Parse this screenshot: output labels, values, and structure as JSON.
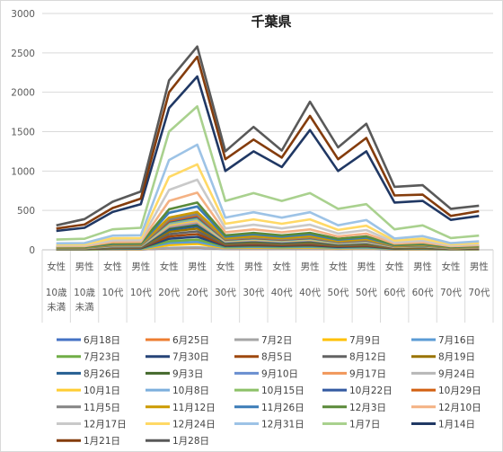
{
  "chart_data": {
    "type": "line",
    "title": "千葉県",
    "ylim": [
      0,
      3000
    ],
    "yticks": [
      0,
      500,
      1000,
      1500,
      2000,
      2500,
      3000
    ],
    "grid": true,
    "legend_position": "bottom",
    "categories": [
      {
        "top": "女性",
        "bottom": [
          "10歳",
          "未満"
        ]
      },
      {
        "top": "男性",
        "bottom": [
          "10歳",
          "未満"
        ]
      },
      {
        "top": "女性",
        "bottom": [
          "10代"
        ]
      },
      {
        "top": "男性",
        "bottom": [
          "10代"
        ]
      },
      {
        "top": "女性",
        "bottom": [
          "20代"
        ]
      },
      {
        "top": "男性",
        "bottom": [
          "20代"
        ]
      },
      {
        "top": "女性",
        "bottom": [
          "30代"
        ]
      },
      {
        "top": "男性",
        "bottom": [
          "30代"
        ]
      },
      {
        "top": "女性",
        "bottom": [
          "40代"
        ]
      },
      {
        "top": "男性",
        "bottom": [
          "40代"
        ]
      },
      {
        "top": "女性",
        "bottom": [
          "50代"
        ]
      },
      {
        "top": "男性",
        "bottom": [
          "50代"
        ]
      },
      {
        "top": "女性",
        "bottom": [
          "60代"
        ]
      },
      {
        "top": "男性",
        "bottom": [
          "60代"
        ]
      },
      {
        "top": "女性",
        "bottom": [
          "70代"
        ]
      },
      {
        "top": "男性",
        "bottom": [
          "70代"
        ]
      }
    ],
    "series": [
      {
        "name": "6月18日",
        "color": "#4472c4",
        "values": [
          3,
          3,
          5,
          5,
          20,
          25,
          10,
          12,
          10,
          12,
          8,
          10,
          5,
          6,
          3,
          5
        ]
      },
      {
        "name": "6月25日",
        "color": "#ed7d31",
        "values": [
          3,
          3,
          5,
          5,
          22,
          28,
          11,
          13,
          11,
          13,
          9,
          11,
          5,
          7,
          3,
          5
        ]
      },
      {
        "name": "7月2日",
        "color": "#a5a5a5",
        "values": [
          4,
          4,
          6,
          6,
          25,
          32,
          12,
          15,
          12,
          15,
          10,
          12,
          6,
          7,
          4,
          6
        ]
      },
      {
        "name": "7月9日",
        "color": "#ffc000",
        "values": [
          5,
          5,
          10,
          10,
          60,
          75,
          25,
          30,
          25,
          30,
          20,
          25,
          10,
          12,
          6,
          8
        ]
      },
      {
        "name": "7月16日",
        "color": "#5b9bd5",
        "values": [
          6,
          6,
          13,
          14,
          85,
          100,
          32,
          38,
          32,
          38,
          25,
          30,
          12,
          15,
          7,
          10
        ]
      },
      {
        "name": "7月23日",
        "color": "#70ad47",
        "values": [
          8,
          8,
          16,
          17,
          110,
          130,
          40,
          48,
          40,
          48,
          32,
          38,
          15,
          18,
          9,
          12
        ]
      },
      {
        "name": "7月30日",
        "color": "#264478",
        "values": [
          10,
          10,
          20,
          21,
          140,
          165,
          50,
          58,
          50,
          58,
          38,
          46,
          18,
          22,
          11,
          14
        ]
      },
      {
        "name": "8月5日",
        "color": "#9e480e",
        "values": [
          12,
          12,
          25,
          26,
          170,
          200,
          60,
          70,
          60,
          70,
          46,
          55,
          22,
          26,
          13,
          17
        ]
      },
      {
        "name": "8月12日",
        "color": "#636363",
        "values": [
          14,
          14,
          30,
          31,
          200,
          235,
          72,
          84,
          72,
          84,
          55,
          66,
          26,
          31,
          15,
          20
        ]
      },
      {
        "name": "8月19日",
        "color": "#997300",
        "values": [
          16,
          16,
          35,
          36,
          230,
          270,
          83,
          97,
          83,
          97,
          64,
          76,
          30,
          35,
          17,
          23
        ]
      },
      {
        "name": "8月26日",
        "color": "#255e91",
        "values": [
          18,
          18,
          40,
          41,
          255,
          300,
          92,
          108,
          92,
          108,
          71,
          85,
          33,
          39,
          19,
          25
        ]
      },
      {
        "name": "9月3日",
        "color": "#43682b",
        "values": [
          19,
          20,
          43,
          44,
          275,
          322,
          99,
          116,
          99,
          116,
          76,
          91,
          35,
          42,
          20,
          27
        ]
      },
      {
        "name": "9月10日",
        "color": "#698ed0",
        "values": [
          20,
          21,
          45,
          46,
          290,
          340,
          104,
          122,
          104,
          122,
          80,
          96,
          37,
          44,
          21,
          28
        ]
      },
      {
        "name": "9月17日",
        "color": "#f1975a",
        "values": [
          21,
          22,
          47,
          48,
          300,
          352,
          108,
          126,
          108,
          126,
          83,
          99,
          38,
          46,
          22,
          29
        ]
      },
      {
        "name": "9月24日",
        "color": "#b7b7b7",
        "values": [
          22,
          23,
          49,
          50,
          310,
          364,
          112,
          130,
          112,
          130,
          86,
          103,
          40,
          47,
          23,
          30
        ]
      },
      {
        "name": "10月1日",
        "color": "#ffcd33",
        "values": [
          23,
          24,
          51,
          52,
          322,
          378,
          116,
          135,
          116,
          135,
          89,
          107,
          41,
          49,
          24,
          31
        ]
      },
      {
        "name": "10月8日",
        "color": "#7cafdd",
        "values": [
          24,
          25,
          53,
          54,
          334,
          392,
          120,
          140,
          120,
          140,
          92,
          111,
          43,
          51,
          25,
          32
        ]
      },
      {
        "name": "10月15日",
        "color": "#8cc168",
        "values": [
          25,
          26,
          55,
          56,
          346,
          406,
          124,
          145,
          124,
          145,
          95,
          115,
          44,
          53,
          26,
          33
        ]
      },
      {
        "name": "10月22日",
        "color": "#335aa1",
        "values": [
          26,
          27,
          57,
          58,
          358,
          420,
          128,
          150,
          128,
          150,
          98,
          119,
          46,
          55,
          27,
          34
        ]
      },
      {
        "name": "10月29日",
        "color": "#d26012",
        "values": [
          27,
          28,
          59,
          60,
          370,
          434,
          132,
          155,
          132,
          155,
          101,
          123,
          47,
          57,
          28,
          35
        ]
      },
      {
        "name": "11月5日",
        "color": "#848484",
        "values": [
          28,
          29,
          62,
          63,
          385,
          452,
          138,
          161,
          138,
          161,
          105,
          128,
          49,
          59,
          29,
          37
        ]
      },
      {
        "name": "11月12日",
        "color": "#cc9a00",
        "values": [
          30,
          31,
          66,
          67,
          410,
          480,
          147,
          172,
          147,
          172,
          112,
          136,
          52,
          63,
          31,
          39
        ]
      },
      {
        "name": "11月26日",
        "color": "#3b7cb7",
        "values": [
          34,
          35,
          75,
          77,
          470,
          550,
          168,
          197,
          168,
          197,
          128,
          155,
          60,
          72,
          35,
          45
        ]
      },
      {
        "name": "12月3日",
        "color": "#5a8a39",
        "values": [
          37,
          38,
          82,
          84,
          515,
          600,
          184,
          215,
          184,
          215,
          140,
          170,
          65,
          78,
          38,
          49
        ]
      },
      {
        "name": "12月10日",
        "color": "#f4b183",
        "values": [
          45,
          46,
          98,
          100,
          620,
          725,
          222,
          259,
          222,
          259,
          169,
          205,
          79,
          95,
          46,
          59
        ]
      },
      {
        "name": "12月17日",
        "color": "#c9c9c9",
        "values": [
          55,
          57,
          120,
          123,
          760,
          890,
          272,
          318,
          272,
          318,
          207,
          251,
          96,
          116,
          56,
          72
        ]
      },
      {
        "name": "12月24日",
        "color": "#ffd966",
        "values": [
          67,
          69,
          146,
          150,
          925,
          1085,
          331,
          387,
          331,
          387,
          252,
          306,
          117,
          141,
          68,
          88
        ]
      },
      {
        "name": "12月31日",
        "color": "#9dc3e6",
        "values": [
          82,
          85,
          180,
          185,
          1140,
          1335,
          408,
          477,
          408,
          477,
          311,
          377,
          144,
          174,
          84,
          108
        ]
      },
      {
        "name": "1月7日",
        "color": "#a9d18e",
        "values": [
          130,
          140,
          260,
          280,
          1500,
          1820,
          620,
          720,
          620,
          720,
          520,
          580,
          260,
          310,
          150,
          180
        ]
      },
      {
        "name": "1月14日",
        "color": "#203864",
        "values": [
          240,
          280,
          480,
          580,
          1800,
          2200,
          1000,
          1250,
          1050,
          1520,
          1000,
          1250,
          600,
          620,
          380,
          430
        ]
      },
      {
        "name": "1月21日",
        "color": "#843c0c",
        "values": [
          270,
          320,
          530,
          650,
          2000,
          2450,
          1150,
          1400,
          1170,
          1700,
          1150,
          1420,
          690,
          700,
          430,
          490
        ]
      },
      {
        "name": "1月28日",
        "color": "#595959",
        "values": [
          310,
          390,
          610,
          740,
          2150,
          2580,
          1250,
          1560,
          1260,
          1880,
          1300,
          1600,
          800,
          820,
          520,
          560
        ]
      }
    ]
  }
}
